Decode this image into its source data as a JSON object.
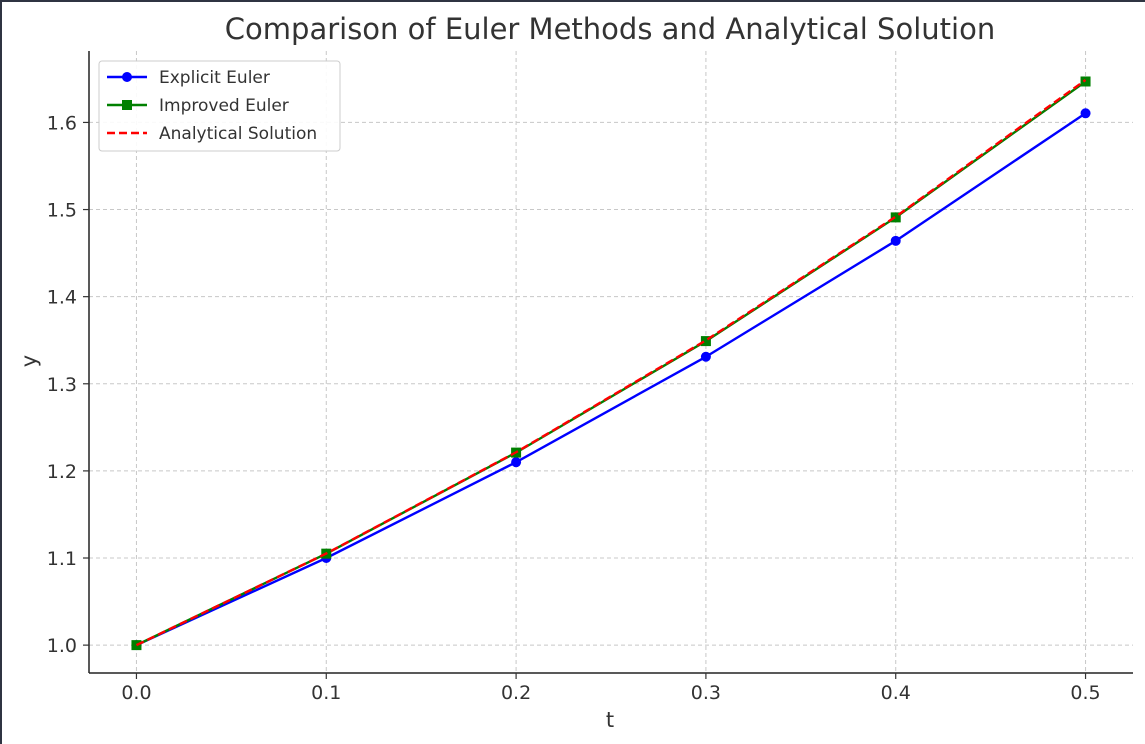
{
  "chart_data": {
    "type": "line",
    "title": "Comparison of Euler Methods and Analytical Solution",
    "xlabel": "t",
    "ylabel": "y",
    "xlim": [
      -0.025,
      0.525
    ],
    "ylim": [
      0.968,
      1.682
    ],
    "xticks": [
      0.0,
      0.1,
      0.2,
      0.3,
      0.4,
      0.5
    ],
    "xtick_labels": [
      "0.0",
      "0.1",
      "0.2",
      "0.3",
      "0.4",
      "0.5"
    ],
    "yticks": [
      1.0,
      1.1,
      1.2,
      1.3,
      1.4,
      1.5,
      1.6
    ],
    "ytick_labels": [
      "1.0",
      "1.1",
      "1.2",
      "1.3",
      "1.4",
      "1.5",
      "1.6"
    ],
    "grid": true,
    "legend_position": "top-left",
    "x": [
      0.0,
      0.1,
      0.2,
      0.3,
      0.4,
      0.5
    ],
    "series": [
      {
        "name": "Explicit Euler",
        "values": [
          1.0,
          1.1,
          1.21,
          1.331,
          1.4641,
          1.61051
        ],
        "color": "#0000ff",
        "marker": "circle",
        "linestyle": "solid"
      },
      {
        "name": "Improved Euler",
        "values": [
          1.0,
          1.105,
          1.221,
          1.349,
          1.491,
          1.647
        ],
        "color": "#008000",
        "marker": "square",
        "linestyle": "solid"
      },
      {
        "name": "Analytical Solution",
        "values": [
          1.0,
          1.10517,
          1.2214,
          1.34986,
          1.49182,
          1.64872
        ],
        "color": "#ff0000",
        "marker": "none",
        "linestyle": "dashed"
      }
    ]
  }
}
